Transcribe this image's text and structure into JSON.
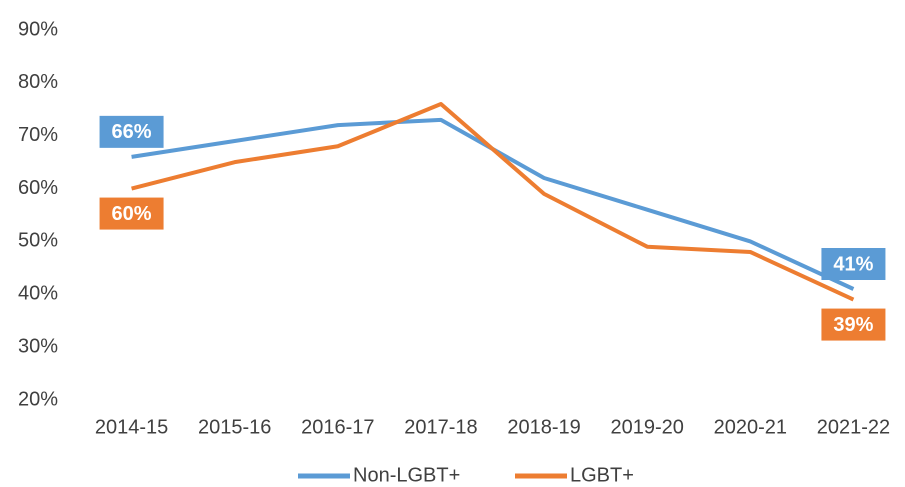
{
  "chart_data": {
    "type": "line",
    "categories": [
      "2014-15",
      "2015-16",
      "2016-17",
      "2017-18",
      "2018-19",
      "2019-20",
      "2020-21",
      "2021-22"
    ],
    "series": [
      {
        "name": "Non-LGBT+",
        "color": "#5b9bd5",
        "values": [
          66,
          69,
          72,
          73,
          62,
          56,
          50,
          41
        ],
        "value_labels": [
          "66%",
          null,
          null,
          null,
          null,
          null,
          null,
          "41%"
        ]
      },
      {
        "name": "LGBT+",
        "color": "#ed7d31",
        "values": [
          60,
          65,
          68,
          76,
          59,
          49,
          48,
          39
        ],
        "value_labels": [
          "60%",
          null,
          null,
          null,
          null,
          null,
          null,
          "39%"
        ]
      }
    ],
    "ylim": [
      20,
      90
    ],
    "yticks": [
      {
        "value": 20,
        "label": "20%"
      },
      {
        "value": 30,
        "label": "30%"
      },
      {
        "value": 40,
        "label": "40%"
      },
      {
        "value": 50,
        "label": "50%"
      },
      {
        "value": 60,
        "label": "60%"
      },
      {
        "value": 70,
        "label": "70%"
      },
      {
        "value": 80,
        "label": "80%"
      },
      {
        "value": 90,
        "label": "90%"
      }
    ],
    "grid": false,
    "legend": "bottom"
  }
}
